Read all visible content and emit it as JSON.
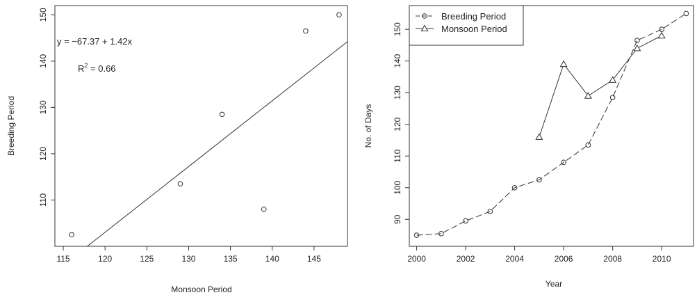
{
  "chart_data": [
    {
      "type": "scatter",
      "title": "",
      "xlabel": "Monsoon Period",
      "ylabel": "Breeding Period",
      "xlim": [
        114,
        149
      ],
      "ylim": [
        100,
        152
      ],
      "xticks": [
        115,
        120,
        125,
        130,
        135,
        140,
        145
      ],
      "yticks": [
        110,
        120,
        130,
        140,
        150
      ],
      "grid": false,
      "points": [
        {
          "x": 116,
          "y": 102.5
        },
        {
          "x": 129,
          "y": 113.5
        },
        {
          "x": 134,
          "y": 128.5
        },
        {
          "x": 139,
          "y": 108
        },
        {
          "x": 144,
          "y": 146.5
        },
        {
          "x": 148,
          "y": 150
        }
      ],
      "regression": {
        "intercept": -67.37,
        "slope": 1.42
      },
      "annotations": {
        "equation": "y = −67.37 + 1.42x",
        "r2_label": "R",
        "r2_sup": "2",
        "r2_value": " = 0.66"
      }
    },
    {
      "type": "line",
      "title": "",
      "xlabel": "Year",
      "ylabel": "No. of Days",
      "xlim": [
        1999.7,
        2011.3
      ],
      "ylim": [
        81.5,
        157.5
      ],
      "xticks": [
        2000,
        2002,
        2004,
        2006,
        2008,
        2010
      ],
      "yticks": [
        90,
        100,
        110,
        120,
        130,
        140,
        150
      ],
      "grid": false,
      "legend_position": "top-left",
      "series": [
        {
          "name": "Breeding Period",
          "marker": "circle",
          "line": "dashed",
          "x": [
            2000,
            2001,
            2002,
            2003,
            2004,
            2005,
            2006,
            2007,
            2008,
            2009,
            2010,
            2011
          ],
          "y": [
            85,
            85.5,
            89.5,
            92.5,
            100,
            102.5,
            108,
            113.5,
            128.5,
            146.5,
            150,
            155
          ]
        },
        {
          "name": "Monsoon Period",
          "marker": "triangle",
          "line": "solid",
          "x": [
            2005,
            2006,
            2007,
            2008,
            2009,
            2010
          ],
          "y": [
            116,
            139,
            129,
            134,
            144,
            148
          ]
        }
      ]
    }
  ]
}
